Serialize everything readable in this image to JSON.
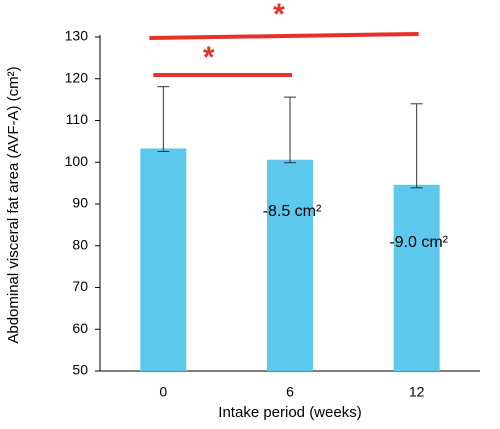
{
  "chart_data": {
    "type": "bar",
    "x_label": "Intake period (weeks)",
    "y_label": "Abdominal visceral fat area (AVF-A) (cm²)",
    "categories": [
      "0",
      "6",
      "12"
    ],
    "values": [
      103.3,
      100.6,
      94.6
    ],
    "errors": [
      14.8,
      15.0,
      19.4
    ],
    "color": "#5bc8ec",
    "ylim": [
      50,
      130
    ],
    "yticks": [
      50,
      60,
      70,
      80,
      90,
      100,
      110,
      120,
      130
    ],
    "annotations": [
      "-8.5 cm²",
      "-9.0 cm²"
    ],
    "significance": [
      {
        "label": "*",
        "color": "#e8312a"
      },
      {
        "label": "*",
        "color": "#e8312a"
      }
    ]
  }
}
